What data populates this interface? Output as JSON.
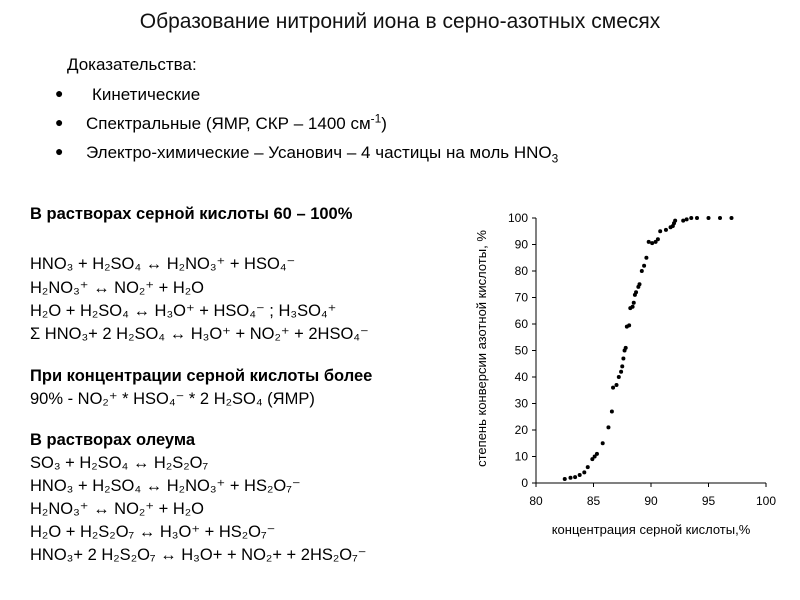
{
  "title": "Образование нитроний иона в серно-азотных смесях",
  "evidence": {
    "heading": "Доказательства:",
    "items": [
      {
        "text": "Кинетические"
      },
      {
        "pre": "Спектральные (ЯМР, СКР – 1400 см",
        "sup": "-1",
        "post": ")"
      },
      {
        "pre": "Электро-химические – Усанович – 4 частицы на моль HNO",
        "sub": "3"
      }
    ]
  },
  "sections": {
    "sulfuric_heading": "В растворах серной кислоты 60 – 100%",
    "high_conc_heading": "При концентрации серной кислоты более",
    "high_conc_line": "90%  - NO₂⁺ * HSO₄⁻ * 2 H₂SO₄   (ЯМР)",
    "oleum_heading": "В растворах олеума"
  },
  "equations": {
    "sulfuric": [
      "HNO₃ + H₂SO₄ ↔ H₂NO₃⁺ + HSO₄⁻",
      "H₂NO₃⁺ ↔ NO₂⁺ + H₂O",
      "H₂O + H₂SO₄ ↔ H₃O⁺ + HSO₄⁻ ; H₃SO₄⁺",
      "Σ HNO₃+ 2 H₂SO₄ ↔ H₃O⁺ + NO₂⁺ + 2HSO₄⁻"
    ],
    "oleum": [
      "SO₃ + H₂SO₄ ↔ H₂S₂O₇",
      "HNO₃ + H₂SO₄ ↔ H₂NO₃⁺ + HS₂O₇⁻",
      "H₂NO₃⁺ ↔ NO₂⁺ + H₂O",
      "H₂O + H₂S₂O₇ ↔ H₃O⁺ + HS₂O₇⁻",
      "HNO₃+ 2 H₂S₂O₇ ↔ H₃O+ + NO₂+ + 2HS₂O₇⁻"
    ]
  },
  "chart_data": {
    "type": "scatter",
    "xlabel": "концентрация серной кислоты,%",
    "ylabel": "степень конверсии азотной кислоты, %",
    "xlim": [
      80,
      100
    ],
    "ylim": [
      0,
      100
    ],
    "xticks": [
      "80",
      "85",
      "90",
      "95",
      "100"
    ],
    "yticks": [
      "0",
      "10",
      "20",
      "30",
      "40",
      "50",
      "60",
      "70",
      "80",
      "90",
      "100"
    ],
    "grid": false,
    "color": "#000000",
    "points": [
      [
        82.5,
        1.5
      ],
      [
        83.0,
        2.0
      ],
      [
        83.4,
        2.2
      ],
      [
        83.8,
        3.0
      ],
      [
        84.2,
        4.0
      ],
      [
        84.5,
        6.0
      ],
      [
        84.9,
        9.0
      ],
      [
        85.1,
        10.0
      ],
      [
        85.3,
        11.0
      ],
      [
        85.8,
        15.0
      ],
      [
        86.3,
        21.0
      ],
      [
        86.6,
        27.0
      ],
      [
        86.7,
        36.0
      ],
      [
        87.0,
        37.0
      ],
      [
        87.2,
        40.0
      ],
      [
        87.4,
        42.0
      ],
      [
        87.5,
        44.0
      ],
      [
        87.6,
        47.0
      ],
      [
        87.7,
        50.0
      ],
      [
        87.8,
        51.0
      ],
      [
        87.9,
        59.0
      ],
      [
        88.1,
        59.5
      ],
      [
        88.2,
        66.0
      ],
      [
        88.4,
        66.5
      ],
      [
        88.5,
        68.0
      ],
      [
        88.6,
        71.0
      ],
      [
        88.7,
        72.0
      ],
      [
        88.9,
        74.0
      ],
      [
        89.0,
        75.0
      ],
      [
        89.2,
        80.0
      ],
      [
        89.4,
        82.0
      ],
      [
        89.6,
        85.0
      ],
      [
        89.8,
        91.0
      ],
      [
        90.1,
        90.5
      ],
      [
        90.4,
        91.0
      ],
      [
        90.6,
        92.0
      ],
      [
        90.8,
        95.0
      ],
      [
        91.3,
        95.5
      ],
      [
        91.7,
        96.5
      ],
      [
        91.9,
        97.0
      ],
      [
        92.0,
        98.0
      ],
      [
        92.1,
        99.0
      ],
      [
        92.8,
        99.0
      ],
      [
        93.1,
        99.5
      ],
      [
        93.5,
        100.0
      ],
      [
        94.0,
        100.0
      ],
      [
        95.0,
        100.0
      ],
      [
        96.0,
        100.0
      ],
      [
        97.0,
        100.0
      ]
    ]
  }
}
